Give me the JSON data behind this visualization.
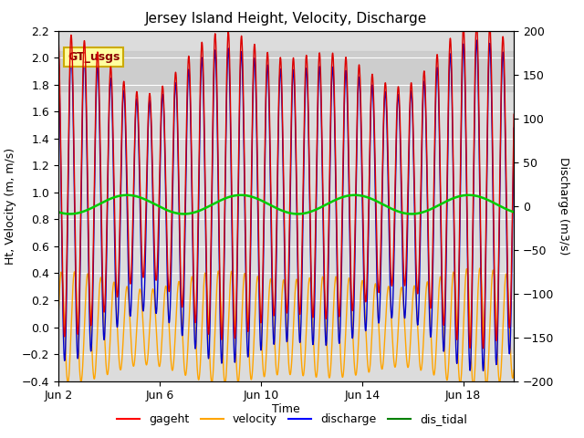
{
  "title": "Jersey Island Height, Velocity, Discharge",
  "xlabel": "Time",
  "ylabel_left": "Ht, Velocity (m, m/s)",
  "ylabel_right": "Discharge (m3/s)",
  "ylim_left": [
    -0.4,
    2.2
  ],
  "ylim_right": [
    -200,
    200
  ],
  "yticks_left": [
    -0.4,
    -0.2,
    0.0,
    0.2,
    0.4,
    0.6,
    0.8,
    1.0,
    1.2,
    1.4,
    1.6,
    1.8,
    2.0,
    2.2
  ],
  "yticks_right": [
    -200,
    -150,
    -100,
    -50,
    0,
    50,
    100,
    150,
    200
  ],
  "xtick_labels": [
    "Jun 2",
    "Jun 6",
    "Jun 10",
    "Jun 14",
    "Jun 18"
  ],
  "xtick_positions": [
    0,
    4,
    8,
    12,
    16
  ],
  "xlim": [
    0,
    18
  ],
  "legend_labels": [
    "gageht",
    "velocity",
    "discharge",
    "dis_tidal"
  ],
  "legend_colors": [
    "red",
    "orange",
    "blue",
    "green"
  ],
  "annotation_text": "GT_usgs",
  "annotation_facecolor": "#FFFFA0",
  "annotation_edgecolor": "#CCAA00",
  "background_color": "#DCDCDC",
  "hspan_low": 1.75,
  "hspan_high": 2.05,
  "hspan_color": "#C8C8C8",
  "tidal_period_hours": 12.4,
  "gageht_mean": 1.05,
  "gageht_amp_base": 0.95,
  "gageht_amp_mod": 0.15,
  "gageht_amp_mod_period_days": 9.0,
  "velocity_amp_base": 0.36,
  "velocity_amp_mod": 0.04,
  "velocity_amp_mod_period_days": 9.0,
  "dis_tidal_mean": 0.91,
  "dis_tidal_amp": 0.07,
  "dis_tidal_period_days": 4.5,
  "line_colors": {
    "gageht": "#DD0000",
    "velocity": "#FFA500",
    "discharge": "#0000CC",
    "dis_tidal": "#00CC00"
  },
  "line_widths": {
    "gageht": 1.0,
    "velocity": 1.0,
    "discharge": 1.0,
    "dis_tidal": 1.8
  }
}
